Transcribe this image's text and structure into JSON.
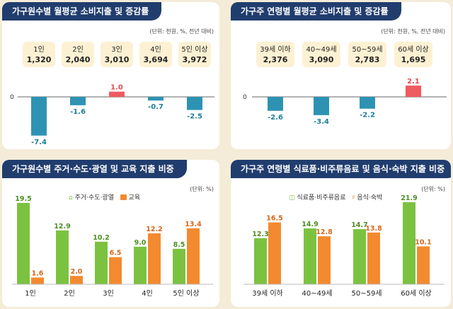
{
  "colors": {
    "teal": "#2e93b3",
    "red": "#ee5b60",
    "green": "#7cc241",
    "orange": "#f38a2f",
    "title_bg": "#213d6e",
    "box_bg": "#fdf1d3",
    "axis": "#666666",
    "label_teal": "#1d7f9c",
    "label_red": "#e34b50",
    "label_green": "#4d8d22",
    "label_orange": "#d8661b"
  },
  "panels": {
    "p1": {
      "title": "가구원수별 월평균 소비지출 및 증감률",
      "unit": "(단위: 천원, %, 전년 대비)"
    },
    "p2": {
      "title": "가구주 연령별 월평균 소비지출 및 증감률",
      "unit": "(단위: 천원, %, 전년 대비)"
    },
    "p3": {
      "title": "가구원수별 주거·수도·광열 및 교육 지출 비중",
      "unit": "(단위: %)"
    },
    "p4": {
      "title": "가구주 연령별 식료품·비주류음료 및 음식·숙박 지출 비중",
      "unit": "(단위: %)"
    }
  },
  "chart_data": [
    {
      "type": "bar",
      "title": "가구원수별 월평균 소비지출 및 증감률",
      "categories": [
        "1인",
        "2인",
        "3인",
        "4인",
        "5인 이상"
      ],
      "spending": [
        "1,320",
        "2,040",
        "3,010",
        "3,694",
        "3,972"
      ],
      "values": [
        -7.4,
        -1.6,
        1.0,
        -0.7,
        -2.5
      ],
      "value_labels": [
        "-7.4",
        "-1.6",
        "1.0",
        "-0.7",
        "-2.5"
      ],
      "zero_label": "0",
      "ylim": [
        -8.5,
        2.5
      ]
    },
    {
      "type": "bar",
      "title": "가구주 연령별 월평균 소비지출 및 증감률",
      "categories": [
        "39세 이하",
        "40~49세",
        "50~59세",
        "60세 이상"
      ],
      "spending": [
        "2,376",
        "3,090",
        "2,783",
        "1,695"
      ],
      "values": [
        -2.6,
        -3.4,
        -2.2,
        2.1
      ],
      "value_labels": [
        "-2.6",
        "-3.4",
        "-2.2",
        "2.1"
      ],
      "zero_label": "0",
      "ylim": [
        -4.0,
        2.5
      ]
    },
    {
      "type": "bar",
      "title": "가구원수별 주거·수도·광열 및 교육 지출 비중",
      "categories": [
        "1인",
        "2인",
        "3인",
        "4인",
        "5인 이상"
      ],
      "series": [
        {
          "name": "주거·수도·광열",
          "values": [
            19.5,
            12.9,
            10.2,
            9.0,
            8.5
          ],
          "labels": [
            "19.5",
            "12.9",
            "10.2",
            "9.0",
            "8.5"
          ]
        },
        {
          "name": "교육",
          "values": [
            1.6,
            2.0,
            6.5,
            12.2,
            13.4
          ],
          "labels": [
            "1.6",
            "2.0",
            "6.5",
            "12.2",
            "13.4"
          ]
        }
      ],
      "ylim": [
        0,
        22
      ]
    },
    {
      "type": "bar",
      "title": "가구주 연령별 식료품·비주류음료 및 음식·숙박 지출 비중",
      "categories": [
        "39세 이하",
        "40~49세",
        "50~59세",
        "60세 이상"
      ],
      "series": [
        {
          "name": "식료품·비주류음료",
          "values": [
            12.3,
            14.9,
            14.7,
            21.9
          ],
          "labels": [
            "12.3",
            "14.9",
            "14.7",
            "21.9"
          ]
        },
        {
          "name": "음식·숙박",
          "values": [
            16.5,
            12.8,
            13.8,
            10.1
          ],
          "labels": [
            "16.5",
            "12.8",
            "13.8",
            "10.1"
          ]
        }
      ],
      "ylim": [
        0,
        24
      ]
    }
  ]
}
